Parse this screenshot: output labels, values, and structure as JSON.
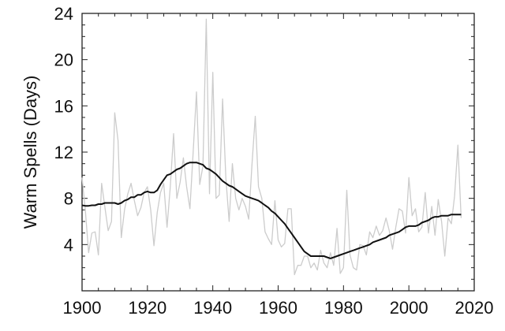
{
  "chart_data": {
    "type": "line",
    "xlabel": "",
    "ylabel": "Warm Spells (Days)",
    "xlim": [
      1900,
      2020
    ],
    "ylim": [
      0,
      24
    ],
    "xticks": [
      1900,
      1920,
      1940,
      1960,
      1980,
      2000,
      2020
    ],
    "yticks": [
      4,
      8,
      12,
      16,
      20,
      24
    ],
    "grid": false,
    "legend": "none",
    "series": [
      {
        "color": "#cccccc",
        "x": [
          1900,
          1901,
          1902,
          1903,
          1904,
          1905,
          1906,
          1907,
          1908,
          1909,
          1910,
          1911,
          1912,
          1913,
          1914,
          1915,
          1916,
          1917,
          1918,
          1919,
          1920,
          1921,
          1922,
          1923,
          1924,
          1925,
          1926,
          1927,
          1928,
          1929,
          1930,
          1931,
          1932,
          1933,
          1934,
          1935,
          1936,
          1937,
          1938,
          1939,
          1940,
          1941,
          1942,
          1943,
          1944,
          1945,
          1946,
          1947,
          1948,
          1949,
          1950,
          1951,
          1952,
          1953,
          1954,
          1955,
          1956,
          1957,
          1958,
          1959,
          1960,
          1961,
          1962,
          1963,
          1964,
          1965,
          1966,
          1967,
          1968,
          1969,
          1970,
          1971,
          1972,
          1973,
          1974,
          1975,
          1976,
          1977,
          1978,
          1979,
          1980,
          1981,
          1982,
          1983,
          1984,
          1985,
          1986,
          1987,
          1988,
          1989,
          1990,
          1991,
          1992,
          1993,
          1994,
          1995,
          1996,
          1997,
          1998,
          1999,
          2000,
          2001,
          2002,
          2003,
          2004,
          2005,
          2006,
          2007,
          2008,
          2009,
          2010,
          2011,
          2012,
          2013,
          2014,
          2015,
          2016
        ],
        "y": [
          9.8,
          7.0,
          3.3,
          5.0,
          5.1,
          3.1,
          9.3,
          7.2,
          5.2,
          6.0,
          15.4,
          13.0,
          4.6,
          7.0,
          8.4,
          9.3,
          7.8,
          6.5,
          7.2,
          8.5,
          9.0,
          7.0,
          3.9,
          6.8,
          8.5,
          9.3,
          5.5,
          9.0,
          13.6,
          8.0,
          9.4,
          11.5,
          9.0,
          7.1,
          12.0,
          17.2,
          9.2,
          10.8,
          23.5,
          8.4,
          18.9,
          8.0,
          8.3,
          16.6,
          9.8,
          6.0,
          11.0,
          8.0,
          7.0,
          8.0,
          7.3,
          6.2,
          11.0,
          15.1,
          9.0,
          8.0,
          5.1,
          4.5,
          4.0,
          7.8,
          4.4,
          3.8,
          4.1,
          7.1,
          7.1,
          1.4,
          2.2,
          2.2,
          3.0,
          3.0,
          2.0,
          2.4,
          1.8,
          3.5,
          2.4,
          2.0,
          3.3,
          2.2,
          5.4,
          1.5,
          2.0,
          8.7,
          3.1,
          2.0,
          1.8,
          4.0,
          3.9,
          3.1,
          5.1,
          4.6,
          5.6,
          4.8,
          5.2,
          6.3,
          5.2,
          3.6,
          5.5,
          7.1,
          6.9,
          5.0,
          9.8,
          6.5,
          7.1,
          5.1,
          5.5,
          8.5,
          5.0,
          7.3,
          4.8,
          7.9,
          6.0,
          3.0,
          6.3,
          5.8,
          8.2,
          12.6,
          6.3
        ]
      },
      {
        "color": "#111111",
        "x": [
          1900,
          1901,
          1902,
          1903,
          1904,
          1905,
          1906,
          1907,
          1908,
          1909,
          1910,
          1911,
          1912,
          1913,
          1914,
          1915,
          1916,
          1917,
          1918,
          1919,
          1920,
          1921,
          1922,
          1923,
          1924,
          1925,
          1926,
          1927,
          1928,
          1929,
          1930,
          1931,
          1932,
          1933,
          1934,
          1935,
          1936,
          1937,
          1938,
          1939,
          1940,
          1941,
          1942,
          1943,
          1944,
          1945,
          1946,
          1947,
          1948,
          1949,
          1950,
          1951,
          1952,
          1953,
          1954,
          1955,
          1956,
          1957,
          1958,
          1959,
          1960,
          1961,
          1962,
          1963,
          1964,
          1965,
          1966,
          1967,
          1968,
          1969,
          1970,
          1971,
          1972,
          1973,
          1974,
          1975,
          1976,
          1977,
          1978,
          1979,
          1980,
          1981,
          1982,
          1983,
          1984,
          1985,
          1986,
          1987,
          1988,
          1989,
          1990,
          1991,
          1992,
          1993,
          1994,
          1995,
          1996,
          1997,
          1998,
          1999,
          2000,
          2001,
          2002,
          2003,
          2004,
          2005,
          2006,
          2007,
          2008,
          2009,
          2010,
          2011,
          2012,
          2013,
          2014,
          2015,
          2016
        ],
        "y": [
          7.4,
          7.35,
          7.35,
          7.4,
          7.4,
          7.5,
          7.5,
          7.6,
          7.6,
          7.6,
          7.6,
          7.5,
          7.6,
          7.8,
          7.9,
          8.1,
          8.1,
          8.3,
          8.3,
          8.5,
          8.6,
          8.5,
          8.5,
          8.7,
          9.2,
          9.6,
          10.0,
          10.1,
          10.3,
          10.5,
          10.6,
          10.8,
          11.0,
          11.1,
          11.1,
          11.1,
          11.0,
          10.9,
          10.6,
          10.5,
          10.3,
          10.1,
          9.8,
          9.5,
          9.3,
          9.1,
          9.0,
          8.8,
          8.6,
          8.4,
          8.2,
          8.1,
          8.0,
          7.9,
          7.8,
          7.6,
          7.4,
          7.2,
          6.9,
          6.7,
          6.4,
          6.1,
          5.8,
          5.4,
          5.0,
          4.6,
          4.2,
          3.8,
          3.4,
          3.2,
          3.0,
          3.0,
          3.0,
          3.0,
          3.0,
          2.9,
          2.8,
          2.9,
          3.0,
          3.1,
          3.2,
          3.3,
          3.4,
          3.5,
          3.6,
          3.7,
          3.8,
          3.9,
          4.0,
          4.2,
          4.3,
          4.4,
          4.5,
          4.6,
          4.8,
          4.9,
          5.0,
          5.1,
          5.3,
          5.5,
          5.6,
          5.6,
          5.6,
          5.7,
          5.9,
          6.0,
          6.1,
          6.3,
          6.4,
          6.4,
          6.5,
          6.5,
          6.5,
          6.6,
          6.6,
          6.6,
          6.6
        ]
      }
    ]
  }
}
